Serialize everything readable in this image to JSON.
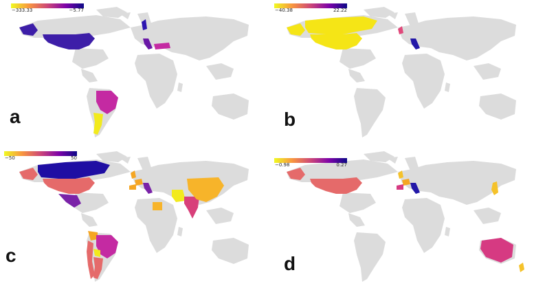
{
  "figure": {
    "panels": [
      {
        "id": "a",
        "label": "a",
        "legend": {
          "min": "−333.33",
          "max": "−5.77"
        },
        "colors": {
          "usa": "#3d1ea8",
          "alaska": "#3d1ea8",
          "canada": "",
          "mexico": "",
          "brazil": "#c42aa2",
          "argentina": "#f2ea1d",
          "uk": "",
          "france": "",
          "spain": "",
          "italy": "#6a18a6",
          "turkey": "#c42aa2",
          "sweden": "#2c15b0",
          "chile_peru": "",
          "colombia": "",
          "bolivia": "",
          "india": "",
          "china": "",
          "iran": "",
          "egypt": "",
          "japan": "",
          "australia": "",
          "nz": ""
        }
      },
      {
        "id": "b",
        "label": "b",
        "legend": {
          "min": "−40.38",
          "max": "22.22"
        },
        "colors": {
          "usa": "#f5e516",
          "alaska": "#f5e516",
          "canada": "#f5e516",
          "mexico": "",
          "brazil": "",
          "argentina": "",
          "uk": "#e0487a",
          "france": "",
          "spain": "",
          "italy": "#2318a8",
          "turkey": "",
          "sweden": "",
          "chile_peru": "",
          "colombia": "",
          "bolivia": "",
          "india": "",
          "china": "",
          "iran": "",
          "egypt": "",
          "japan": "",
          "australia": "",
          "nz": ""
        }
      },
      {
        "id": "c",
        "label": "c",
        "legend": {
          "min": "−50",
          "max": "50"
        },
        "colors": {
          "usa": "#e56a6a",
          "alaska": "#e56a6a",
          "canada": "#1f0ea3",
          "mexico": "#7a22a8",
          "brazil": "#c42aa2",
          "argentina": "#e56a6a",
          "uk": "#f5a623",
          "france": "#f5a623",
          "spain": "#f5a623",
          "italy": "#7a22a8",
          "turkey": "",
          "sweden": "",
          "chile_peru": "#e56a6a",
          "colombia": "#f5a623",
          "bolivia": "#f2ea1d",
          "india": "#d8407a",
          "china": "#f7b42a",
          "iran": "#f2ea1d",
          "egypt": "#f7b42a",
          "japan": "",
          "australia": "",
          "nz": ""
        }
      },
      {
        "id": "d",
        "label": "d",
        "legend": {
          "min": "−0.98",
          "max": "0.27"
        },
        "colors": {
          "usa": "#e56a6a",
          "alaska": "#e56a6a",
          "canada": "",
          "mexico": "",
          "brazil": "",
          "argentina": "",
          "uk": "#f5c22a",
          "france": "#f5a623",
          "spain": "#d63a82",
          "italy": "#2318a8",
          "turkey": "",
          "sweden": "",
          "chile_peru": "",
          "colombia": "",
          "bolivia": "",
          "india": "",
          "china": "",
          "iran": "",
          "egypt": "",
          "japan": "#f5c22a",
          "australia": "#d63a82",
          "nz": "#f5c22a"
        }
      }
    ],
    "colorscale": [
      "#f0f921",
      "#f89540",
      "#cc4778",
      "#7e03a8",
      "#0d0887"
    ],
    "land_color": "#dcdcdc"
  }
}
